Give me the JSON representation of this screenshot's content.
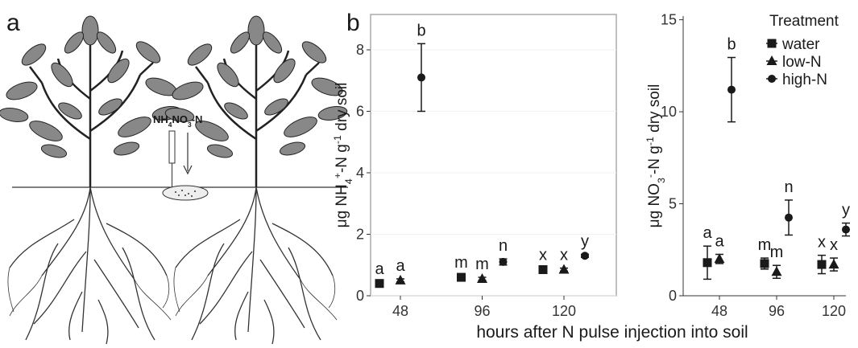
{
  "panel_labels": [
    "a",
    "b"
  ],
  "illustration_label": {
    "parts": [
      "NH",
      "4",
      "NO",
      "3",
      "-N"
    ],
    "styles": [
      "normal",
      "sub",
      "normal",
      "sub",
      "normal"
    ]
  },
  "x_label": "hours after N pulse injection into soil",
  "chart_data": [
    {
      "type": "scatter",
      "ylabel": {
        "parts": [
          "μg NH",
          "4",
          "+",
          "-N g",
          "-1",
          " dry soil"
        ],
        "styles": [
          "normal",
          "sub",
          "sup",
          "normal",
          "sup",
          "normal"
        ]
      },
      "categories": [
        "48",
        "96",
        "120"
      ],
      "ylim": [
        0,
        9.15
      ],
      "yticks": [
        0,
        2,
        4,
        6,
        8
      ],
      "grid": true,
      "frame": true,
      "series": [
        {
          "name": "water",
          "marker": "square",
          "color": "#1a1a1a",
          "values": [
            0.4,
            0.6,
            0.85
          ],
          "errors": [
            0.05,
            0.05,
            0.05
          ],
          "letters": [
            "a",
            "m",
            "x"
          ]
        },
        {
          "name": "low-N",
          "marker": "triangle",
          "color": "#1a1a1a",
          "values": [
            0.5,
            0.55,
            0.85
          ],
          "errors": [
            0.05,
            0.05,
            0.05
          ],
          "letters": [
            "a",
            "m",
            "x"
          ]
        },
        {
          "name": "high-N",
          "marker": "circle",
          "color": "#1a1a1a",
          "values": [
            7.1,
            1.1,
            1.3
          ],
          "errors": [
            1.1,
            0.1,
            0.05
          ],
          "letters": [
            "b",
            "n",
            "y"
          ]
        }
      ]
    },
    {
      "type": "scatter",
      "ylabel": {
        "parts": [
          "μg NO",
          "3",
          "-",
          "-N g",
          "-1",
          " dry soil"
        ],
        "styles": [
          "normal",
          "sub",
          "sup",
          "normal",
          "sup",
          "normal"
        ]
      },
      "categories": [
        "48",
        "96",
        "120"
      ],
      "ylim": [
        0,
        15.2
      ],
      "yticks": [
        0,
        5,
        10,
        15
      ],
      "grid": false,
      "frame": false,
      "legend_title": "Treatment",
      "legend": "top-right",
      "series": [
        {
          "name": "water",
          "marker": "square",
          "color": "#1a1a1a",
          "values": [
            1.8,
            1.75,
            1.7
          ],
          "errors": [
            0.9,
            0.3,
            0.5
          ],
          "letters": [
            "a",
            "m",
            "x"
          ]
        },
        {
          "name": "low-N",
          "marker": "triangle",
          "color": "#1a1a1a",
          "values": [
            2.0,
            1.3,
            1.7
          ],
          "errors": [
            0.25,
            0.35,
            0.35
          ],
          "letters": [
            "a",
            "m",
            "x"
          ]
        },
        {
          "name": "high-N",
          "marker": "circle",
          "color": "#1a1a1a",
          "values": [
            11.2,
            4.25,
            3.6
          ],
          "errors": [
            1.75,
            0.95,
            0.35
          ],
          "letters": [
            "b",
            "n",
            "y"
          ]
        }
      ]
    }
  ]
}
